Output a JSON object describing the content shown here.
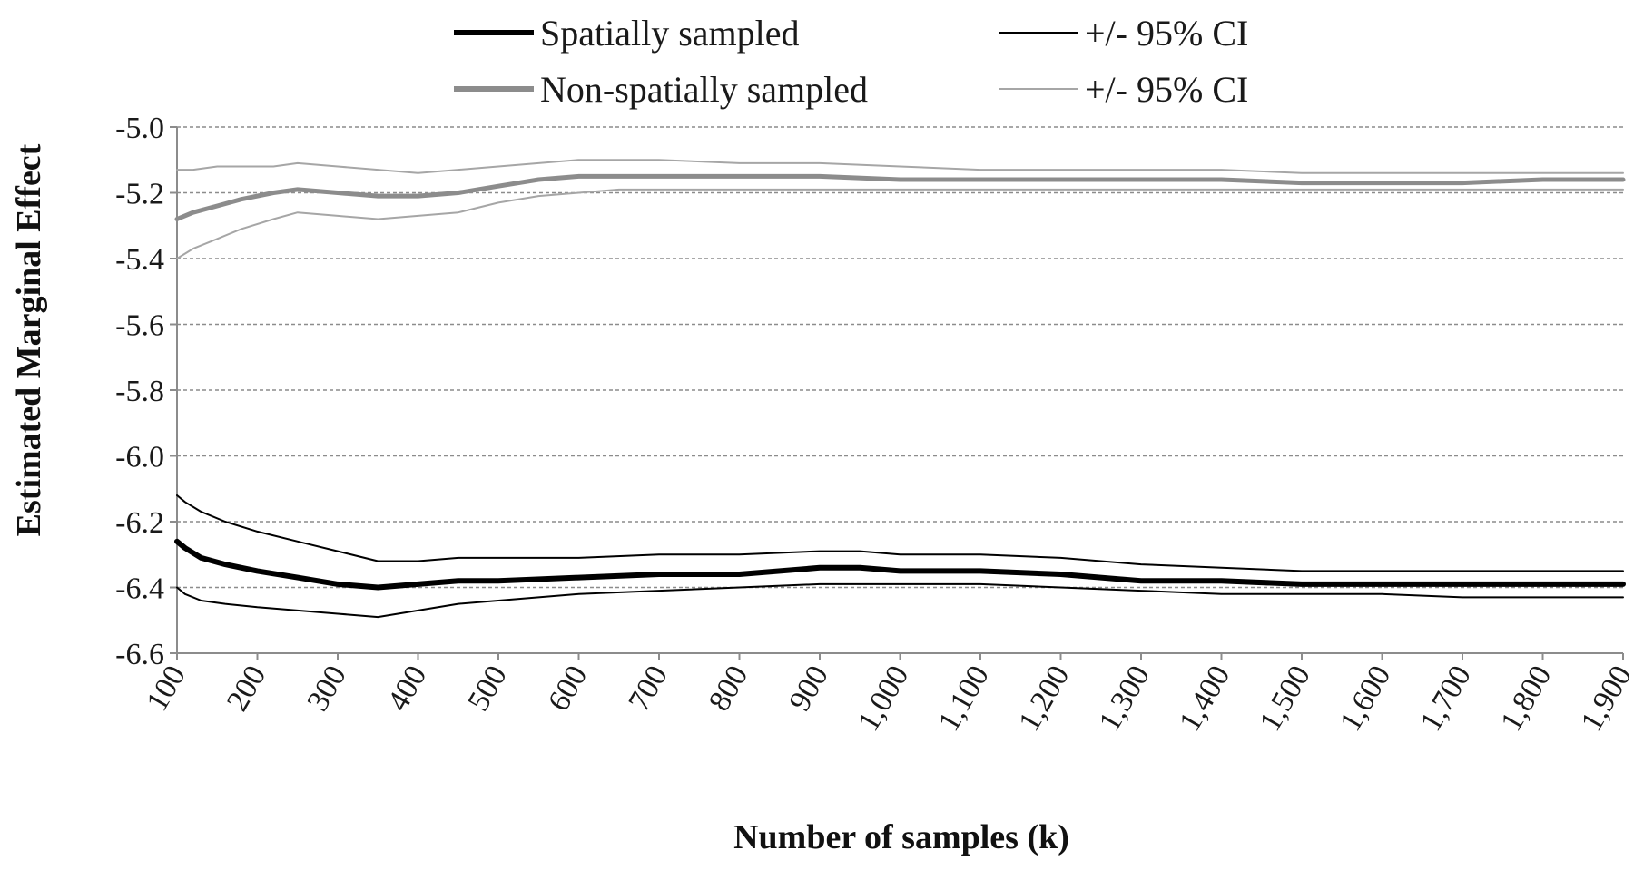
{
  "chart_data": {
    "type": "line",
    "xlabel": "Number of samples (k)",
    "ylabel": "Estimated Marginal Effect",
    "xlim": [
      100,
      1900
    ],
    "ylim": [
      -6.6,
      -5.0
    ],
    "x_ticks": [
      100,
      200,
      300,
      400,
      500,
      600,
      700,
      800,
      900,
      1000,
      1100,
      1200,
      1300,
      1400,
      1500,
      1600,
      1700,
      1800,
      1900
    ],
    "x_tick_labels": [
      "100",
      "200",
      "300",
      "400",
      "500",
      "600",
      "700",
      "800",
      "900",
      "1,000",
      "1,100",
      "1,200",
      "1,300",
      "1,400",
      "1,500",
      "1,600",
      "1,700",
      "1,800",
      "1,900"
    ],
    "y_ticks": [
      -5.0,
      -5.2,
      -5.4,
      -5.6,
      -5.8,
      -6.0,
      -6.2,
      -6.4,
      -6.6
    ],
    "y_tick_labels": [
      "-5.0",
      "-5.2",
      "-5.4",
      "-5.6",
      "-5.8",
      "-6.0",
      "-6.2",
      "-6.4",
      "-6.6"
    ],
    "grid": true,
    "legend_position": "top",
    "legend": [
      {
        "label": "Spatially sampled",
        "color": "#000000",
        "style": "thick"
      },
      {
        "label": "+/- 95% CI",
        "color": "#000000",
        "style": "thin"
      },
      {
        "label": "Non-spatially sampled",
        "color": "#8c8c8c",
        "style": "thick"
      },
      {
        "label": "+/- 95% CI",
        "color": "#a6a6a6",
        "style": "thin"
      }
    ],
    "series": [
      {
        "name": "Non-spatially sampled",
        "color": "#8c8c8c",
        "width": 5,
        "x": [
          100,
          120,
          150,
          180,
          220,
          250,
          300,
          350,
          400,
          450,
          500,
          550,
          600,
          650,
          700,
          800,
          900,
          1000,
          1100,
          1200,
          1300,
          1400,
          1500,
          1600,
          1700,
          1800,
          1900
        ],
        "y": [
          -5.28,
          -5.26,
          -5.24,
          -5.22,
          -5.2,
          -5.19,
          -5.2,
          -5.21,
          -5.21,
          -5.2,
          -5.18,
          -5.16,
          -5.15,
          -5.15,
          -5.15,
          -5.15,
          -5.15,
          -5.16,
          -5.16,
          -5.16,
          -5.16,
          -5.16,
          -5.17,
          -5.17,
          -5.17,
          -5.16,
          -5.16
        ]
      },
      {
        "name": "+/- 95% CI",
        "color": "#a6a6a6",
        "width": 2,
        "x": [
          100,
          120,
          150,
          180,
          220,
          250,
          300,
          350,
          400,
          450,
          500,
          550,
          600,
          650,
          700,
          800,
          900,
          1000,
          1100,
          1200,
          1300,
          1400,
          1500,
          1600,
          1700,
          1800,
          1900
        ],
        "y": [
          -5.13,
          -5.13,
          -5.12,
          -5.12,
          -5.12,
          -5.11,
          -5.12,
          -5.13,
          -5.14,
          -5.13,
          -5.12,
          -5.11,
          -5.1,
          -5.1,
          -5.1,
          -5.11,
          -5.11,
          -5.12,
          -5.13,
          -5.13,
          -5.13,
          -5.13,
          -5.14,
          -5.14,
          -5.14,
          -5.14,
          -5.14
        ]
      },
      {
        "name": "+/- 95% CI",
        "color": "#a6a6a6",
        "width": 2,
        "x": [
          100,
          120,
          150,
          180,
          220,
          250,
          300,
          350,
          400,
          450,
          500,
          550,
          600,
          650,
          700,
          800,
          900,
          1000,
          1100,
          1200,
          1300,
          1400,
          1500,
          1600,
          1700,
          1800,
          1900
        ],
        "y": [
          -5.4,
          -5.37,
          -5.34,
          -5.31,
          -5.28,
          -5.26,
          -5.27,
          -5.28,
          -5.27,
          -5.26,
          -5.23,
          -5.21,
          -5.2,
          -5.19,
          -5.19,
          -5.19,
          -5.19,
          -5.19,
          -5.19,
          -5.19,
          -5.19,
          -5.19,
          -5.19,
          -5.19,
          -5.19,
          -5.19,
          -5.19
        ]
      },
      {
        "name": "Spatially sampled",
        "color": "#000000",
        "width": 6,
        "x": [
          100,
          110,
          130,
          160,
          200,
          250,
          300,
          350,
          400,
          450,
          500,
          600,
          700,
          800,
          900,
          950,
          1000,
          1100,
          1200,
          1300,
          1400,
          1500,
          1600,
          1700,
          1800,
          1900
        ],
        "y": [
          -6.26,
          -6.28,
          -6.31,
          -6.33,
          -6.35,
          -6.37,
          -6.39,
          -6.4,
          -6.39,
          -6.38,
          -6.38,
          -6.37,
          -6.36,
          -6.36,
          -6.34,
          -6.34,
          -6.35,
          -6.35,
          -6.36,
          -6.38,
          -6.38,
          -6.39,
          -6.39,
          -6.39,
          -6.39,
          -6.39
        ]
      },
      {
        "name": "+/- 95% CI",
        "color": "#000000",
        "width": 2,
        "x": [
          100,
          110,
          130,
          160,
          200,
          250,
          300,
          350,
          400,
          450,
          500,
          600,
          700,
          800,
          900,
          950,
          1000,
          1100,
          1200,
          1300,
          1400,
          1500,
          1600,
          1700,
          1800,
          1900
        ],
        "y": [
          -6.12,
          -6.14,
          -6.17,
          -6.2,
          -6.23,
          -6.26,
          -6.29,
          -6.32,
          -6.32,
          -6.31,
          -6.31,
          -6.31,
          -6.3,
          -6.3,
          -6.29,
          -6.29,
          -6.3,
          -6.3,
          -6.31,
          -6.33,
          -6.34,
          -6.35,
          -6.35,
          -6.35,
          -6.35,
          -6.35
        ]
      },
      {
        "name": "+/- 95% CI",
        "color": "#000000",
        "width": 2,
        "x": [
          100,
          110,
          130,
          160,
          200,
          250,
          300,
          350,
          400,
          450,
          500,
          600,
          700,
          800,
          900,
          950,
          1000,
          1100,
          1200,
          1300,
          1400,
          1500,
          1600,
          1700,
          1800,
          1900
        ],
        "y": [
          -6.4,
          -6.42,
          -6.44,
          -6.45,
          -6.46,
          -6.47,
          -6.48,
          -6.49,
          -6.47,
          -6.45,
          -6.44,
          -6.42,
          -6.41,
          -6.4,
          -6.39,
          -6.39,
          -6.39,
          -6.39,
          -6.4,
          -6.41,
          -6.42,
          -6.42,
          -6.42,
          -6.43,
          -6.43,
          -6.43
        ]
      }
    ]
  }
}
